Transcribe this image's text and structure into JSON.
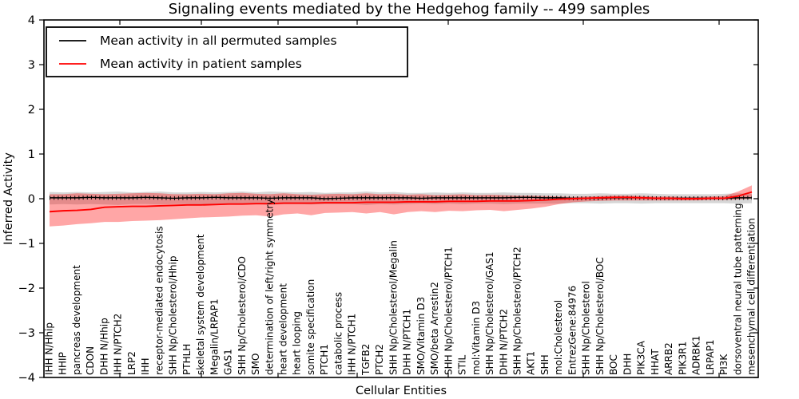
{
  "title": "Signaling events mediated by the Hedgehog family -- 499 samples",
  "axes": {
    "x_label": "Cellular Entities",
    "y_label": "Inferred Activity",
    "y_ticks": [
      "4",
      "3",
      "2",
      "1",
      "0",
      "−1",
      "−2",
      "−3",
      "−4"
    ],
    "y_tick_values": [
      4,
      3,
      2,
      1,
      0,
      -1,
      -2,
      -3,
      -4
    ],
    "ylim": [
      -4,
      4
    ]
  },
  "legend": {
    "entries": [
      {
        "label": "Mean activity in all permuted samples",
        "color": "#000000"
      },
      {
        "label": "Mean activity in patient samples",
        "color": "#ff0000"
      }
    ]
  },
  "colors": {
    "patient_line": "#ff0000",
    "permuted_line": "#000000",
    "patient_band": "rgba(255,0,0,0.35)",
    "permuted_band": "rgba(0,0,0,0.16)"
  },
  "chart_data": {
    "type": "line",
    "title": "Signaling events mediated by the Hedgehog family -- 499 samples",
    "xlabel": "Cellular Entities",
    "ylabel": "Inferred Activity",
    "ylim": [
      -4,
      4
    ],
    "grid": false,
    "legend_position": "upper left",
    "categories": [
      "IHH N/Hhip",
      "HHIP",
      "pancreas development",
      "CDON",
      "DHH N/Hhip",
      "IHH N/PTCH2",
      "LRP2",
      "IHH",
      "receptor-mediated endocytosis",
      "SHH Np/Cholesterol/Hhip",
      "PTHLH",
      "skeletal system development",
      "Megalin/LRPAP1",
      "GAS1",
      "SHH Np/Cholesterol/CDO",
      "SMO",
      "determination of left/right symmetry",
      "heart development",
      "heart looping",
      "somite specification",
      "PTCH1",
      "catabolic process",
      "IHH N/PTCH1",
      "TGFB2",
      "PTCH2",
      "SHH Np/Cholesterol/Megalin",
      "DHH N/PTCH1",
      "SMO/Vitamin D3",
      "SMO/beta Arrestin2",
      "SHH Np/Cholesterol/PTCH1",
      "STIL",
      "mol:Vitamin D3",
      "SHH Np/Cholesterol/GAS1",
      "DHH N/PTCH2",
      "SHH Np/Cholesterol/PTCH2",
      "AKT1",
      "SHH",
      "mol:Cholesterol",
      "EntrezGene:84976",
      "SHH Np/Cholesterol",
      "SHH Np/Cholesterol/BOC",
      "BOC",
      "DHH",
      "PIK3CA",
      "HHAT",
      "ARRB2",
      "PIK3R1",
      "ADRBK1",
      "LRPAP1",
      "PI3K",
      "dorsoventral neural tube patterning",
      "mesenchymal cell differentiation"
    ],
    "series": [
      {
        "name": "Mean activity in all permuted samples",
        "color": "#000000",
        "values": [
          0.02,
          0.02,
          0.02,
          0.03,
          0.02,
          0.02,
          0.02,
          0.03,
          0.02,
          0.01,
          0.02,
          0.02,
          0.03,
          0.02,
          0.02,
          0.02,
          0.01,
          0.02,
          0.02,
          0.02,
          0.0,
          0.01,
          0.02,
          0.02,
          0.02,
          0.02,
          0.02,
          0.01,
          0.02,
          0.02,
          0.02,
          0.02,
          0.02,
          0.02,
          0.03,
          0.03,
          0.02,
          0.02,
          0.01,
          0.01,
          0.01,
          0.02,
          0.02,
          0.02,
          0.01,
          0.01,
          0.01,
          0.01,
          0.01,
          0.01,
          0.02,
          0.02
        ]
      },
      {
        "name": "Mean activity in patient samples",
        "color": "#ff0000",
        "values": [
          -0.29,
          -0.27,
          -0.26,
          -0.24,
          -0.19,
          -0.18,
          -0.17,
          -0.17,
          -0.16,
          -0.15,
          -0.14,
          -0.14,
          -0.13,
          -0.12,
          -0.12,
          -0.11,
          -0.11,
          -0.1,
          -0.1,
          -0.1,
          -0.09,
          -0.09,
          -0.09,
          -0.08,
          -0.08,
          -0.08,
          -0.07,
          -0.07,
          -0.07,
          -0.06,
          -0.06,
          -0.06,
          -0.05,
          -0.05,
          -0.05,
          -0.04,
          -0.03,
          -0.01,
          0.0,
          0.01,
          0.02,
          0.03,
          0.03,
          0.02,
          0.01,
          0.01,
          0.0,
          0.0,
          0.01,
          0.01,
          0.06,
          0.15
        ]
      }
    ],
    "bands": [
      {
        "name": "permuted samples spread",
        "color": "rgba(0,0,0,0.16)",
        "low": [
          -0.13,
          -0.12,
          -0.13,
          -0.12,
          -0.13,
          -0.14,
          -0.12,
          -0.12,
          -0.13,
          -0.12,
          -0.12,
          -0.13,
          -0.12,
          -0.12,
          -0.13,
          -0.12,
          -0.14,
          -0.12,
          -0.12,
          -0.13,
          -0.12,
          -0.12,
          -0.12,
          -0.14,
          -0.12,
          -0.13,
          -0.12,
          -0.11,
          -0.12,
          -0.11,
          -0.12,
          -0.11,
          -0.11,
          -0.12,
          -0.11,
          -0.11,
          -0.11,
          -0.11,
          -0.1,
          -0.1,
          -0.11,
          -0.1,
          -0.1,
          -0.11,
          -0.1,
          -0.1,
          -0.1,
          -0.1,
          -0.1,
          -0.1,
          -0.11,
          -0.1
        ],
        "high": [
          0.15,
          0.14,
          0.15,
          0.14,
          0.15,
          0.16,
          0.14,
          0.15,
          0.16,
          0.14,
          0.14,
          0.15,
          0.14,
          0.15,
          0.16,
          0.14,
          0.16,
          0.15,
          0.14,
          0.15,
          0.13,
          0.14,
          0.14,
          0.16,
          0.14,
          0.15,
          0.13,
          0.13,
          0.14,
          0.13,
          0.14,
          0.13,
          0.13,
          0.14,
          0.13,
          0.13,
          0.12,
          0.12,
          0.11,
          0.11,
          0.12,
          0.11,
          0.11,
          0.12,
          0.11,
          0.1,
          0.1,
          0.1,
          0.1,
          0.11,
          0.12,
          0.11
        ]
      },
      {
        "name": "patient samples spread",
        "color": "rgba(255,0,0,0.35)",
        "low": [
          -0.62,
          -0.6,
          -0.57,
          -0.55,
          -0.52,
          -0.52,
          -0.5,
          -0.49,
          -0.48,
          -0.46,
          -0.44,
          -0.42,
          -0.41,
          -0.4,
          -0.38,
          -0.37,
          -0.4,
          -0.35,
          -0.33,
          -0.37,
          -0.32,
          -0.31,
          -0.3,
          -0.33,
          -0.3,
          -0.35,
          -0.3,
          -0.28,
          -0.3,
          -0.27,
          -0.28,
          -0.26,
          -0.25,
          -0.28,
          -0.25,
          -0.22,
          -0.18,
          -0.12,
          -0.08,
          -0.06,
          -0.05,
          -0.04,
          -0.04,
          -0.04,
          -0.04,
          -0.04,
          -0.04,
          -0.04,
          -0.03,
          -0.03,
          -0.02,
          0.0
        ],
        "high": [
          0.1,
          0.1,
          0.12,
          0.11,
          0.1,
          0.11,
          0.12,
          0.13,
          0.12,
          0.1,
          0.1,
          0.11,
          0.1,
          0.12,
          0.13,
          0.11,
          0.1,
          0.12,
          0.1,
          0.09,
          0.1,
          0.11,
          0.1,
          0.12,
          0.1,
          0.11,
          0.09,
          0.1,
          0.08,
          0.09,
          0.1,
          0.08,
          0.09,
          0.08,
          0.07,
          0.07,
          0.06,
          0.05,
          0.04,
          0.05,
          0.06,
          0.07,
          0.07,
          0.06,
          0.05,
          0.05,
          0.04,
          0.04,
          0.05,
          0.06,
          0.16,
          0.3
        ]
      }
    ]
  }
}
